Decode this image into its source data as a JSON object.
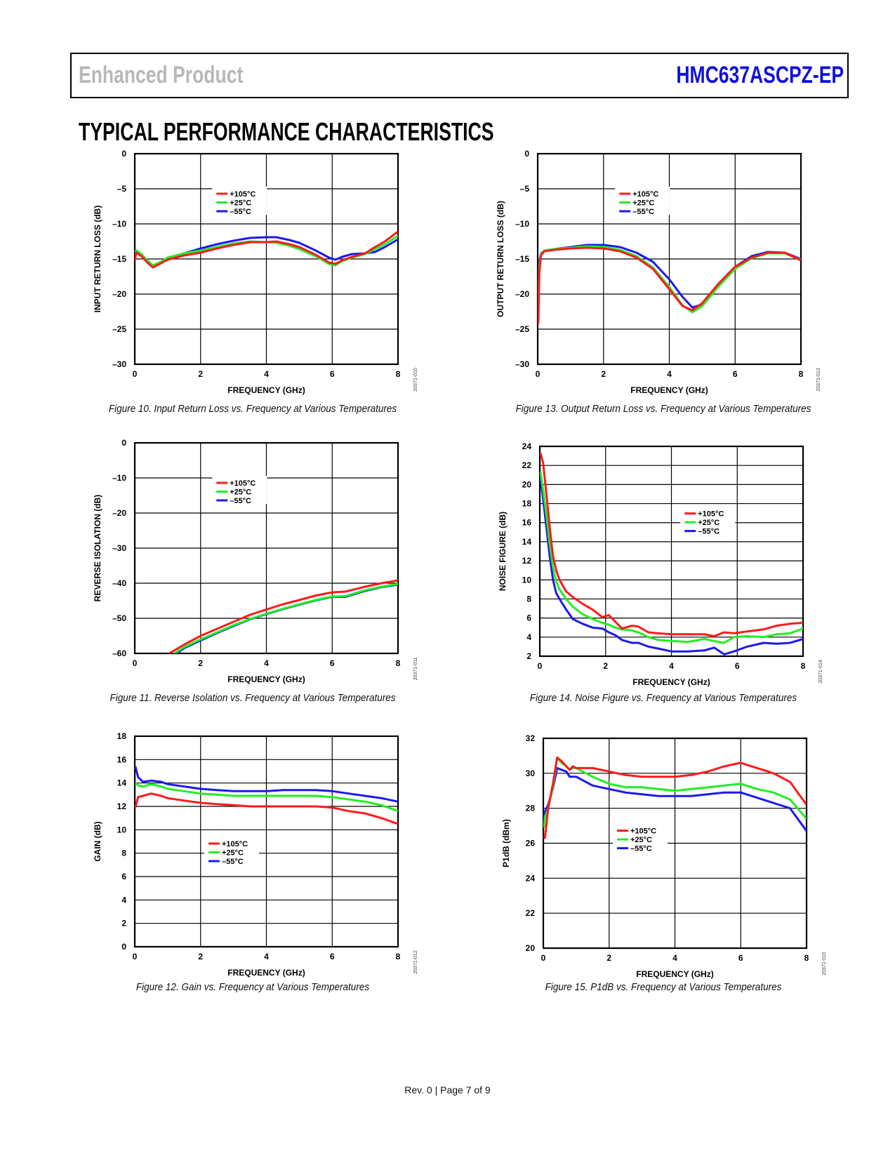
{
  "header": {
    "left_title": "Enhanced Product",
    "right_title": "HMC637ASCPZ-EP",
    "right_color": "#1010e0",
    "left_color": "#b8b8b8"
  },
  "section_title": "TYPICAL PERFORMANCE CHARACTERISTICS",
  "footer": "Rev. 0 | Page 7 of 9",
  "series_colors": {
    "+105°C": "#ff1a1a",
    "+25°C": "#22ee22",
    "−55°C": "#1a1aee"
  },
  "chart_data": [
    {
      "id": "fig10",
      "type": "line",
      "caption": "Figure 10. Input Return Loss vs. Frequency at Various Temperatures",
      "figure_id": "20371-010",
      "xlabel": "FREQUENCY (GHz)",
      "ylabel": "INPUT RETURN LOSS (dB)",
      "xlim": [
        0,
        8
      ],
      "ylim": [
        -30,
        0
      ],
      "xticks": [
        0,
        2,
        4,
        6,
        8
      ],
      "yticks": [
        0,
        -5,
        -10,
        -15,
        -20,
        -25,
        -30
      ],
      "ytick_labels": [
        "0",
        "–5",
        "–10",
        "–15",
        "–20",
        "–25",
        "–30"
      ],
      "grid": true,
      "legend": [
        "+105°C",
        "+25°C",
        "−55°C"
      ],
      "legend_labels": [
        "+105°C",
        "+25°C",
        "–55°C"
      ],
      "legend_position": "upper-center",
      "x": [
        0,
        0.05,
        0.2,
        0.4,
        0.55,
        0.8,
        1.0,
        1.5,
        2.0,
        2.5,
        3.0,
        3.5,
        4.0,
        4.3,
        4.7,
        5.0,
        5.5,
        5.9,
        6.1,
        6.3,
        6.6,
        7.0,
        7.3,
        7.6,
        8.0
      ],
      "series": [
        {
          "name": "+105°C",
          "values": [
            -15.2,
            -14.1,
            -14.6,
            -15.6,
            -16.2,
            -15.6,
            -15.1,
            -14.5,
            -14.1,
            -13.5,
            -13.0,
            -12.6,
            -12.6,
            -12.5,
            -12.9,
            -13.3,
            -14.4,
            -15.5,
            -15.7,
            -15.2,
            -14.7,
            -14.2,
            -13.3,
            -12.5,
            -11.1
          ]
        },
        {
          "name": "+25°C",
          "values": [
            -14.0,
            -13.8,
            -14.3,
            -15.3,
            -15.9,
            -15.4,
            -14.8,
            -14.2,
            -13.8,
            -13.3,
            -12.8,
            -12.5,
            -12.6,
            -12.7,
            -13.1,
            -13.6,
            -14.6,
            -15.7,
            -15.9,
            -15.3,
            -14.8,
            -14.3,
            -13.6,
            -12.9,
            -11.7
          ]
        },
        {
          "name": "−55°C",
          "values": [
            -14.4,
            -14.0,
            -14.4,
            -15.3,
            -16.0,
            -15.5,
            -14.9,
            -14.2,
            -13.5,
            -12.9,
            -12.4,
            -12.0,
            -11.9,
            -11.9,
            -12.3,
            -12.7,
            -13.8,
            -14.8,
            -15.1,
            -14.7,
            -14.3,
            -14.2,
            -14.0,
            -13.3,
            -12.2
          ]
        }
      ]
    },
    {
      "id": "fig13",
      "type": "line",
      "caption": "Figure 13. Output Return Loss vs. Frequency at Various Temperatures",
      "figure_id": "20371-013",
      "xlabel": "FREQUENCY (GHz)",
      "ylabel": "OUTPUT RETURN LOSS (dB)",
      "xlim": [
        0,
        8
      ],
      "ylim": [
        -30,
        0
      ],
      "xticks": [
        0,
        2,
        4,
        6,
        8
      ],
      "yticks": [
        0,
        -5,
        -10,
        -15,
        -20,
        -25,
        -30
      ],
      "ytick_labels": [
        "0",
        "–5",
        "–10",
        "–15",
        "–20",
        "–25",
        "–30"
      ],
      "grid": true,
      "legend": [
        "+105°C",
        "+25°C",
        "−55°C"
      ],
      "legend_labels": [
        "+105°C",
        "+25°C",
        "–55°C"
      ],
      "legend_position": "upper-center",
      "x": [
        0.02,
        0.05,
        0.1,
        0.2,
        0.5,
        1.0,
        1.5,
        2.0,
        2.5,
        3.0,
        3.5,
        4.0,
        4.4,
        4.7,
        5.0,
        5.5,
        6.0,
        6.5,
        7.0,
        7.5,
        8.0
      ],
      "series": [
        {
          "name": "+105°C",
          "values": [
            -24.2,
            -17.0,
            -14.5,
            -13.9,
            -13.7,
            -13.5,
            -13.4,
            -13.5,
            -13.9,
            -14.8,
            -16.4,
            -19.3,
            -21.7,
            -22.3,
            -21.3,
            -18.5,
            -16.1,
            -14.8,
            -14.1,
            -14.1,
            -15.2
          ]
        },
        {
          "name": "+25°C",
          "values": [
            -22.0,
            -16.0,
            -14.3,
            -13.8,
            -13.6,
            -13.4,
            -13.2,
            -13.3,
            -13.7,
            -14.6,
            -16.2,
            -19.0,
            -21.6,
            -22.6,
            -21.7,
            -18.9,
            -16.4,
            -14.9,
            -14.2,
            -14.2,
            -15.1
          ]
        },
        {
          "name": "−55°C",
          "values": [
            -21.0,
            -15.5,
            -14.2,
            -13.8,
            -13.6,
            -13.3,
            -13.0,
            -13.0,
            -13.3,
            -14.1,
            -15.4,
            -17.9,
            -20.4,
            -21.9,
            -21.5,
            -18.5,
            -16.1,
            -14.6,
            -14.0,
            -14.1,
            -15.0
          ]
        }
      ]
    },
    {
      "id": "fig11",
      "type": "line",
      "caption": "Figure 11. Reverse Isolation vs. Frequency at Various Temperatures",
      "figure_id": "20371-011",
      "xlabel": "FREQUENCY (GHz)",
      "ylabel": "REVERSE ISOLATION (dB)",
      "xlim": [
        0,
        8
      ],
      "ylim": [
        -60,
        0
      ],
      "xticks": [
        0,
        2,
        4,
        6,
        8
      ],
      "yticks": [
        0,
        -10,
        -20,
        -30,
        -40,
        -50,
        -60
      ],
      "ytick_labels": [
        "0",
        "–10",
        "–20",
        "–30",
        "–40",
        "–50",
        "–60"
      ],
      "grid": true,
      "legend": [
        "+105°C",
        "+25°C",
        "−55°C"
      ],
      "legend_labels": [
        "+105°C",
        "+25°C",
        "–55°C"
      ],
      "legend_position": "upper-center",
      "x": [
        1.05,
        1.5,
        2.0,
        2.5,
        3.0,
        3.5,
        4.0,
        4.5,
        5.0,
        5.5,
        6.0,
        6.4,
        7.0,
        7.5,
        8.0
      ],
      "series": [
        {
          "name": "+105°C",
          "values": [
            -60,
            -57.5,
            -55.0,
            -53.0,
            -51.0,
            -49.0,
            -47.5,
            -46.0,
            -44.8,
            -43.5,
            -42.6,
            -42.4,
            -41.0,
            -40.0,
            -39.2
          ]
        },
        {
          "name": "+25°C",
          "values": [
            -61,
            -58.2,
            -56.0,
            -54.0,
            -52.0,
            -50.2,
            -48.7,
            -47.3,
            -46.0,
            -44.8,
            -43.8,
            -43.7,
            -42.0,
            -41.0,
            -40.2
          ]
        },
        {
          "name": "−55°C",
          "values": [
            -61.5,
            -58.5,
            -56.3,
            -54.2,
            -52.2,
            -50.3,
            -48.8,
            -47.4,
            -46.1,
            -44.9,
            -43.9,
            -43.9,
            -42.2,
            -41.1,
            -40.4
          ]
        }
      ]
    },
    {
      "id": "fig14",
      "type": "line",
      "caption": "Figure 14. Noise Figure vs. Frequency at Various Temperatures",
      "figure_id": "20371-014",
      "xlabel": "FREQUENCY (GHz)",
      "ylabel": "NOISE FIGURE (dB)",
      "xlim": [
        0,
        8
      ],
      "ylim": [
        2,
        24
      ],
      "xticks": [
        0,
        2,
        4,
        6,
        8
      ],
      "yticks": [
        24,
        22,
        20,
        18,
        16,
        14,
        12,
        10,
        8,
        6,
        4,
        2
      ],
      "ytick_labels": [
        "24",
        "22",
        "20",
        "18",
        "16",
        "14",
        "12",
        "10",
        "8",
        "6",
        "4",
        "2"
      ],
      "grid": true,
      "legend": [
        "+105°C",
        "+25°C",
        "−55°C"
      ],
      "legend_labels": [
        "+105°C",
        "+25°C",
        "–55°C"
      ],
      "legend_position": "center-right",
      "x": [
        0.02,
        0.1,
        0.2,
        0.3,
        0.4,
        0.5,
        0.6,
        0.8,
        1.0,
        1.3,
        1.6,
        1.9,
        2.1,
        2.3,
        2.5,
        2.8,
        3.0,
        3.3,
        3.6,
        4.0,
        4.5,
        5.0,
        5.3,
        5.6,
        5.9,
        6.3,
        6.8,
        7.2,
        7.6,
        8.0
      ],
      "series": [
        {
          "name": "+105°C",
          "values": [
            23.3,
            22.3,
            19.0,
            15.5,
            12.5,
            11.0,
            10.0,
            8.8,
            8.2,
            7.5,
            6.9,
            6.1,
            6.3,
            5.6,
            4.9,
            5.2,
            5.1,
            4.5,
            4.4,
            4.3,
            4.3,
            4.3,
            4.1,
            4.5,
            4.4,
            4.6,
            4.8,
            5.2,
            5.4,
            5.5
          ]
        },
        {
          "name": "+25°C",
          "values": [
            21.3,
            19.5,
            16.8,
            13.8,
            11.3,
            9.8,
            9.0,
            8.0,
            7.2,
            6.4,
            5.9,
            5.5,
            5.3,
            5.0,
            4.8,
            4.7,
            4.5,
            4.0,
            3.7,
            3.6,
            3.5,
            3.8,
            3.6,
            3.4,
            4.0,
            4.1,
            4.0,
            4.3,
            4.4,
            4.9
          ]
        },
        {
          "name": "−55°C",
          "values": [
            20.7,
            18.5,
            15.5,
            12.5,
            10.0,
            8.6,
            8.0,
            6.9,
            5.9,
            5.4,
            5.0,
            4.9,
            4.5,
            4.2,
            3.7,
            3.4,
            3.4,
            3.0,
            2.8,
            2.5,
            2.5,
            2.6,
            2.9,
            2.2,
            2.5,
            3.0,
            3.4,
            3.3,
            3.4,
            3.8
          ]
        }
      ]
    },
    {
      "id": "fig12",
      "type": "line",
      "caption": "Figure 12. Gain vs. Frequency at Various Temperatures",
      "figure_id": "20371-012",
      "xlabel": "FREQUENCY (GHz)",
      "ylabel": "GAIN (dB)",
      "xlim": [
        0,
        8
      ],
      "ylim": [
        0,
        18
      ],
      "xticks": [
        0,
        2,
        4,
        6,
        8
      ],
      "yticks": [
        18,
        16,
        14,
        12,
        10,
        8,
        6,
        4,
        2,
        0
      ],
      "ytick_labels": [
        "18",
        "16",
        "14",
        "12",
        "10",
        "8",
        "6",
        "4",
        "2",
        "0"
      ],
      "grid": true,
      "legend": [
        "+105°C",
        "+25°C",
        "−55°C"
      ],
      "legend_labels": [
        "+105°C",
        "+25°C",
        "–55°C"
      ],
      "legend_position": "center",
      "x": [
        0.02,
        0.1,
        0.25,
        0.5,
        0.8,
        1.0,
        1.5,
        2.0,
        2.5,
        3.0,
        3.5,
        4.0,
        4.5,
        5.0,
        5.5,
        6.0,
        6.5,
        7.0,
        7.5,
        8.0
      ],
      "series": [
        {
          "name": "+105°C",
          "values": [
            11.9,
            12.8,
            12.9,
            13.1,
            12.9,
            12.7,
            12.5,
            12.3,
            12.2,
            12.1,
            12.0,
            12.0,
            12.0,
            12.0,
            12.0,
            11.9,
            11.6,
            11.4,
            11.0,
            10.5
          ]
        },
        {
          "name": "+25°C",
          "values": [
            14.0,
            13.8,
            13.7,
            13.9,
            13.7,
            13.5,
            13.3,
            13.1,
            13.0,
            12.9,
            12.9,
            12.9,
            12.9,
            12.9,
            12.9,
            12.8,
            12.6,
            12.4,
            12.1,
            11.6
          ]
        },
        {
          "name": "−55°C",
          "values": [
            15.4,
            14.5,
            14.1,
            14.2,
            14.1,
            13.9,
            13.7,
            13.5,
            13.4,
            13.3,
            13.3,
            13.3,
            13.4,
            13.4,
            13.4,
            13.3,
            13.1,
            12.9,
            12.7,
            12.4
          ]
        }
      ]
    },
    {
      "id": "fig15",
      "type": "line",
      "caption": "Figure 15. P1dB vs. Frequency at Various Temperatures",
      "figure_id": "20371-015",
      "xlabel": "FREQUENCY (GHz)",
      "ylabel": "P1dB (dBm)",
      "xlim": [
        0,
        8
      ],
      "ylim": [
        20,
        32
      ],
      "xticks": [
        0,
        2,
        4,
        6,
        8
      ],
      "yticks": [
        32,
        30,
        28,
        26,
        24,
        22,
        20
      ],
      "ytick_labels": [
        "32",
        "30",
        "28",
        "26",
        "24",
        "22",
        "20"
      ],
      "grid": true,
      "legend": [
        "+105°C",
        "+25°C",
        "−55°C"
      ],
      "legend_labels": [
        "+105°C",
        "+25°C",
        "–55°C"
      ],
      "legend_position": "center-left",
      "x": [
        0.02,
        0.05,
        0.15,
        0.3,
        0.42,
        0.55,
        0.7,
        0.8,
        0.9,
        1.0,
        1.5,
        2.0,
        2.5,
        3.0,
        3.5,
        4.0,
        4.5,
        5.0,
        5.5,
        6.0,
        6.5,
        7.0,
        7.5,
        8.0
      ],
      "series": [
        {
          "name": "+105°C",
          "values": [
            26.4,
            26.3,
            28.0,
            29.5,
            30.9,
            30.7,
            30.4,
            30.2,
            30.4,
            30.3,
            30.3,
            30.1,
            29.9,
            29.8,
            29.8,
            29.8,
            29.9,
            30.1,
            30.4,
            30.6,
            30.3,
            30.0,
            29.5,
            28.2
          ]
        },
        {
          "name": "+25°C",
          "values": [
            26.9,
            27.5,
            28.0,
            29.3,
            30.9,
            30.6,
            30.4,
            30.2,
            30.3,
            30.3,
            29.8,
            29.4,
            29.2,
            29.2,
            29.1,
            29.0,
            29.1,
            29.2,
            29.3,
            29.4,
            29.1,
            28.9,
            28.5,
            27.4
          ]
        },
        {
          "name": "−55°C",
          "values": [
            27.4,
            27.8,
            28.2,
            29.2,
            30.3,
            30.2,
            30.1,
            29.8,
            29.8,
            29.8,
            29.3,
            29.1,
            28.9,
            28.8,
            28.7,
            28.7,
            28.7,
            28.8,
            28.9,
            28.9,
            28.6,
            28.3,
            28.0,
            26.7
          ]
        }
      ]
    }
  ]
}
